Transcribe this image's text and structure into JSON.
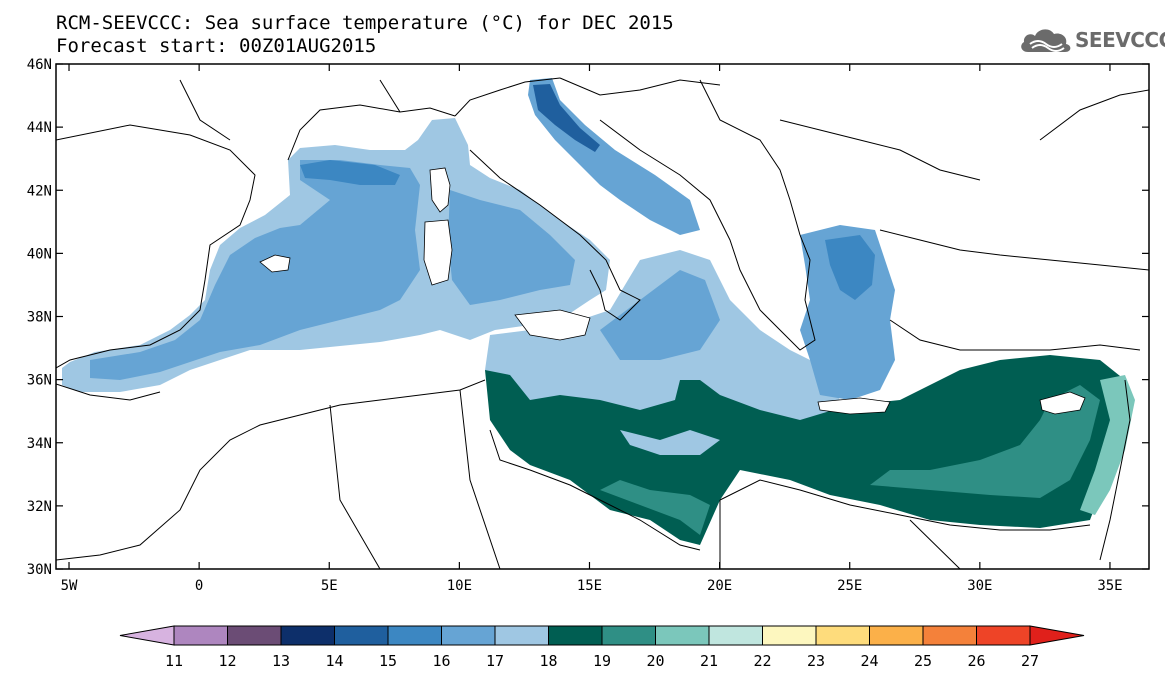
{
  "header": {
    "title_line1": "RCM-SEEVCCC: Sea surface temperature (°C) for DEC 2015",
    "title_line2": "Forecast start: 00Z01AUG2015"
  },
  "logo": {
    "text": "SEEVCCC",
    "icon": "cloud-icon"
  },
  "map": {
    "lon_range": [
      -5.5,
      36.5
    ],
    "lat_range": [
      30,
      46
    ],
    "lon_ticks": [
      "5W",
      "0",
      "5E",
      "10E",
      "15E",
      "20E",
      "25E",
      "30E",
      "35E"
    ],
    "lon_tick_values": [
      -5,
      0,
      5,
      10,
      15,
      20,
      25,
      30,
      35
    ],
    "lat_ticks": [
      "30N",
      "32N",
      "34N",
      "36N",
      "38N",
      "40N",
      "42N",
      "44N",
      "46N"
    ],
    "lat_tick_values": [
      30,
      32,
      34,
      36,
      38,
      40,
      42,
      44,
      46
    ]
  },
  "colorbar": {
    "labels": [
      "11",
      "12",
      "13",
      "14",
      "15",
      "16",
      "17",
      "18",
      "19",
      "20",
      "21",
      "22",
      "23",
      "24",
      "25",
      "26",
      "27"
    ],
    "low_color": "#d7b3e0",
    "high_color": "#e0201b",
    "colors": [
      "#ae86bf",
      "#6b4c75",
      "#0d2f6a",
      "#1f5f9e",
      "#3c87c2",
      "#66a4d4",
      "#9fc7e3",
      "#005e52",
      "#2f8f85",
      "#7bc7bb",
      "#c0e6df",
      "#fdf7bf",
      "#fedc7c",
      "#fbb049",
      "#f4813a",
      "#ee4427"
    ]
  }
}
